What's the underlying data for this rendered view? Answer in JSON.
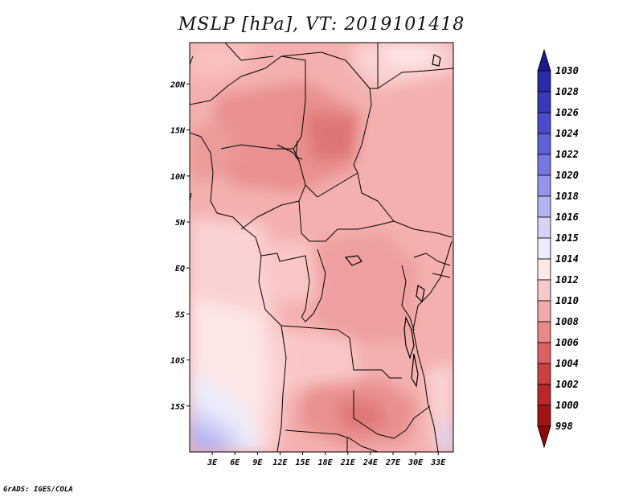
{
  "title": "MSLP [hPa], VT: 2019101418",
  "credit": "GrADS: IGES/COLA",
  "map": {
    "variable": "MSLP",
    "units": "hPa",
    "valid_time": "2019101418",
    "lat_labels": [
      "20N",
      "15N",
      "10N",
      "5N",
      "EQ",
      "5S",
      "10S",
      "15S"
    ],
    "lat_values": [
      20,
      15,
      10,
      5,
      0,
      -5,
      -10,
      -15
    ],
    "lon_labels": [
      "3E",
      "6E",
      "9E",
      "12E",
      "15E",
      "18E",
      "21E",
      "24E",
      "27E",
      "30E",
      "33E"
    ],
    "lon_values": [
      3,
      6,
      9,
      12,
      15,
      18,
      21,
      24,
      27,
      30,
      33
    ],
    "lat_range": [
      -20,
      24.5
    ],
    "lon_range": [
      0,
      35
    ]
  },
  "colorbar": {
    "levels": [
      "1030",
      "1028",
      "1026",
      "1024",
      "1022",
      "1020",
      "1018",
      "1016",
      "1015",
      "1014",
      "1012",
      "1010",
      "1008",
      "1006",
      "1004",
      "1002",
      "1000",
      "998"
    ],
    "colors": [
      "#1a1a8c",
      "#2a2aa8",
      "#3838bb",
      "#4a4acc",
      "#5f5fd8",
      "#7777e2",
      "#9494ea",
      "#b4b4f0",
      "#d4d4f7",
      "#ececfb",
      "#fde8e8",
      "#f9caca",
      "#f3aaaa",
      "#e88888",
      "#db6262",
      "#cc4040",
      "#b82828",
      "#a01616",
      "#8a0a0a"
    ]
  }
}
